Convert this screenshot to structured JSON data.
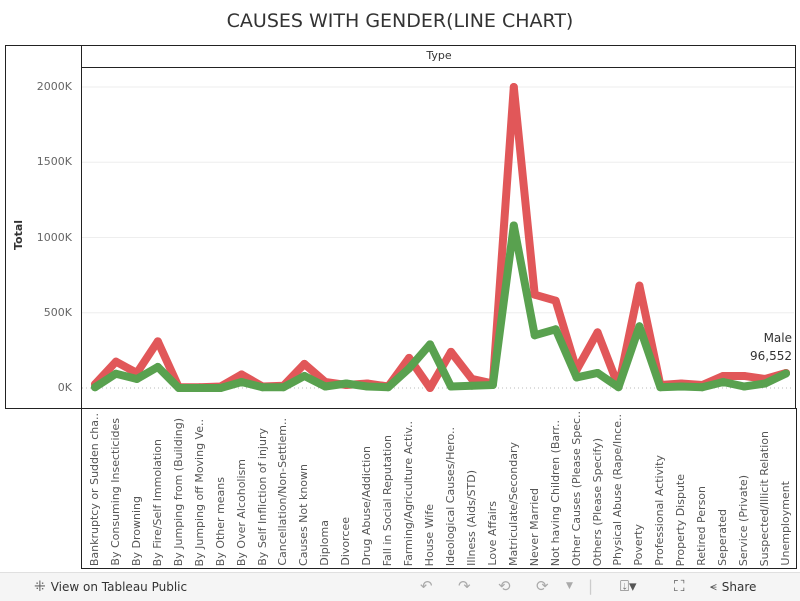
{
  "chart_data": {
    "type": "line",
    "title": "CAUSES WITH GENDER(LINE CHART)",
    "header": "Type",
    "ylabel": "Total",
    "ylim": [
      0,
      2000000
    ],
    "yticks": [
      0,
      500000,
      1000000,
      1500000,
      2000000
    ],
    "ytick_labels": [
      "0K",
      "500K",
      "1000K",
      "1500K",
      "2000K"
    ],
    "grid": true,
    "categories": [
      "Bankruptcy or Sudden cha..",
      "By Consuming Insecticides",
      "By Drowning",
      "By Fire/Self Immolation",
      "By Jumping from (Building)",
      "By Jumping off Moving Ve..",
      "By Other means",
      "By Over Alcoholism",
      "By Self Infliction of injury",
      "Cancellation/Non-Settlem..",
      "Causes Not known",
      "Diploma",
      "Divorcee",
      "Drug Abuse/Addiction",
      "Fall in Social Reputation",
      "Farming/Agriculture Activ..",
      "House Wife",
      "Ideological Causes/Hero..",
      "Illness (Aids/STD)",
      "Love Affairs",
      "Matriculate/Secondary",
      "Never Married",
      "Not having Children (Barr..",
      "Other Causes (Please Spec..",
      "Others (Please Specify)",
      "Physical Abuse (Rape/Ince..",
      "Poverty",
      "Professional Activity",
      "Property Dispute",
      "Retired Person",
      "Seperated",
      "Service (Private)",
      "Suspected/Illicit Relation",
      "Unemployment"
    ],
    "series": [
      {
        "color": "#e15759",
        "values": [
          25000,
          175000,
          100000,
          310000,
          5000,
          5000,
          10000,
          90000,
          10000,
          15000,
          160000,
          40000,
          20000,
          30000,
          10000,
          200000,
          0,
          240000,
          60000,
          30000,
          2000000,
          620000,
          580000,
          120000,
          370000,
          10000,
          680000,
          20000,
          30000,
          20000,
          80000,
          80000,
          60000,
          100000
        ]
      },
      {
        "name": "Male",
        "color": "#59a14f",
        "values": [
          5000,
          95000,
          60000,
          140000,
          0,
          0,
          0,
          40000,
          5000,
          5000,
          80000,
          10000,
          30000,
          10000,
          5000,
          130000,
          290000,
          10000,
          15000,
          20000,
          1080000,
          350000,
          390000,
          70000,
          100000,
          5000,
          410000,
          5000,
          10000,
          5000,
          40000,
          10000,
          30000,
          96552
        ]
      }
    ],
    "annotation": {
      "series": "Male",
      "value": "96,552"
    }
  },
  "footer": {
    "view_label": "View on Tableau Public",
    "share_label": "Share",
    "icons": [
      "tableau-logo-icon",
      "undo-icon",
      "redo-icon",
      "revert-icon",
      "refresh-icon",
      "download-icon",
      "fullscreen-icon",
      "share-icon"
    ]
  }
}
